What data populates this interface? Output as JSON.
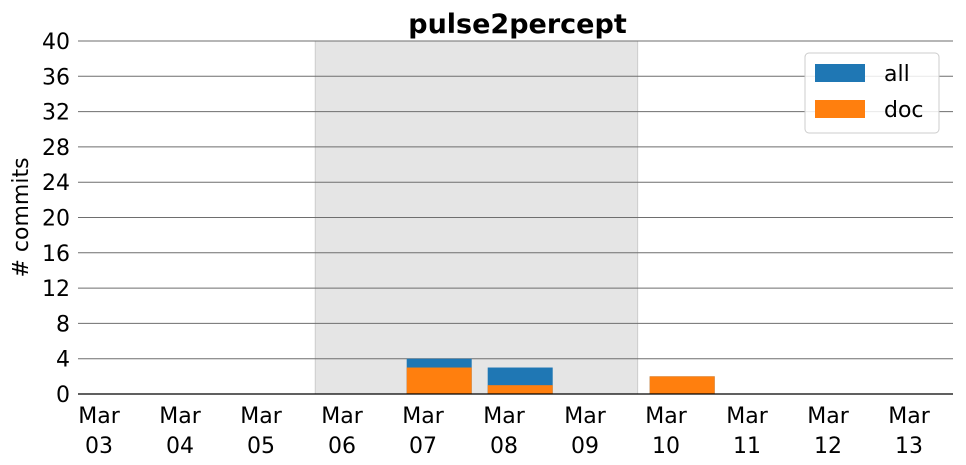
{
  "chart_data": {
    "type": "bar",
    "title": "pulse2percept",
    "xlabel": "",
    "ylabel": "# commits",
    "ylim": [
      0,
      40
    ],
    "yticks": [
      "0",
      "4",
      "8",
      "12",
      "16",
      "20",
      "24",
      "28",
      "32",
      "36",
      "40"
    ],
    "categories": [
      {
        "month": "Mar",
        "day": "03"
      },
      {
        "month": "Mar",
        "day": "04"
      },
      {
        "month": "Mar",
        "day": "05"
      },
      {
        "month": "Mar",
        "day": "06"
      },
      {
        "month": "Mar",
        "day": "07"
      },
      {
        "month": "Mar",
        "day": "08"
      },
      {
        "month": "Mar",
        "day": "09"
      },
      {
        "month": "Mar",
        "day": "10"
      },
      {
        "month": "Mar",
        "day": "11"
      },
      {
        "month": "Mar",
        "day": "12"
      },
      {
        "month": "Mar",
        "day": "13"
      }
    ],
    "series": [
      {
        "name": "all",
        "color": "#1f77b4",
        "values": [
          0,
          0,
          0,
          0,
          4,
          3,
          0,
          2,
          0,
          0,
          0
        ]
      },
      {
        "name": "doc",
        "color": "#ff7f0e",
        "values": [
          0,
          0,
          0,
          0,
          3,
          1,
          0,
          2,
          0,
          0,
          0
        ]
      }
    ],
    "highlight_span": {
      "start": "Mar 06",
      "end": "Mar 09",
      "color": "#e5e5e5"
    },
    "grid": "horizontal",
    "legend": "top-right"
  }
}
